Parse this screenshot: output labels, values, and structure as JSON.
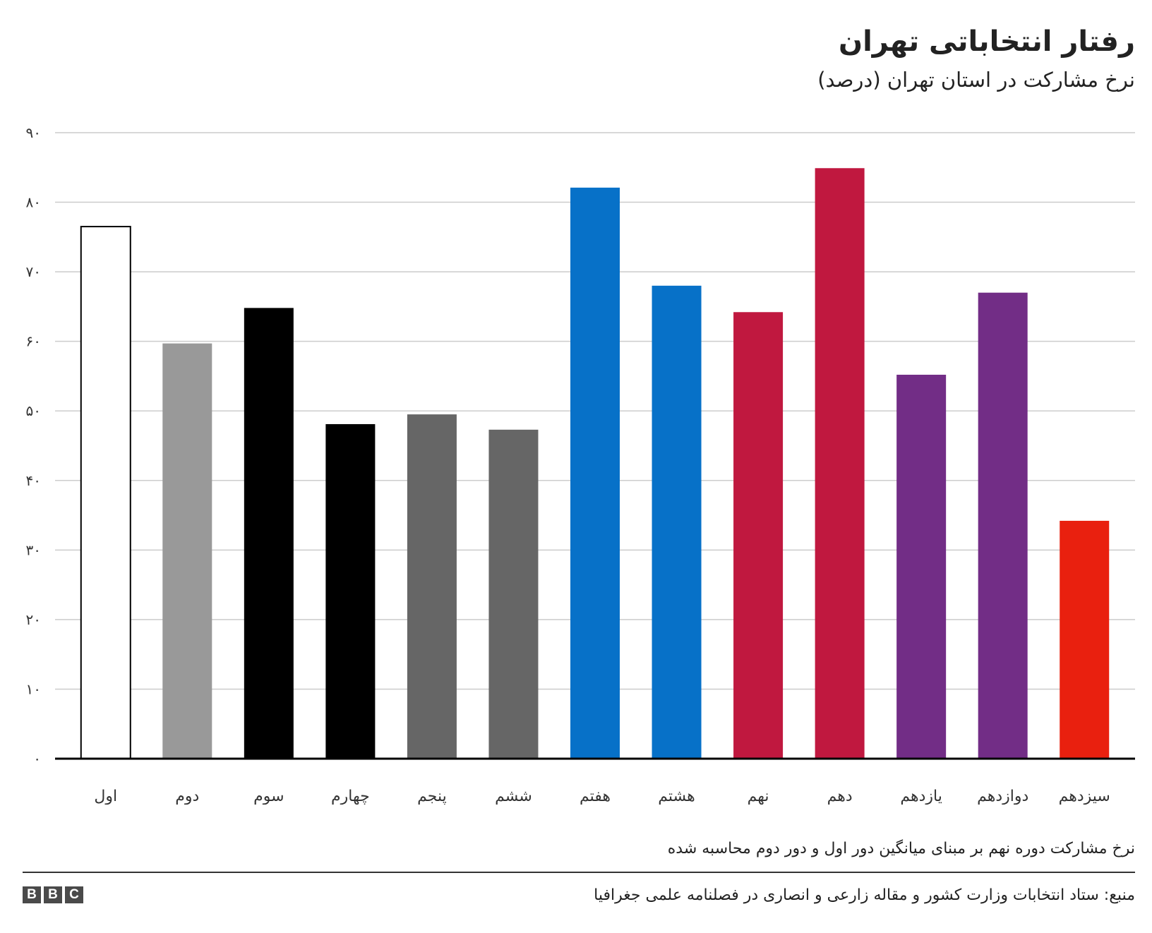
{
  "title": "رفتار انتخاباتی تهران",
  "subtitle": "نرخ مشارکت در استان تهران (درصد)",
  "note": "نرخ مشارکت دوره نهم بر مبنای میانگین دور اول و دور دوم محاسبه شده",
  "source": "منبع: ستاد انتخابات وزارت کشور و مقاله زارعی و انصاری در فصلنامه علمی جغرافیا",
  "logo": [
    "B",
    "B",
    "C"
  ],
  "chart_data": {
    "type": "bar",
    "categories": [
      "اول",
      "دوم",
      "سوم",
      "چهارم",
      "پنجم",
      "ششم",
      "هفتم",
      "هشتم",
      "نهم",
      "دهم",
      "یازدهم",
      "دوازدهم",
      "سیزدهم"
    ],
    "values": [
      76.5,
      59.7,
      64.8,
      48.1,
      49.5,
      47.3,
      82.1,
      68.0,
      64.2,
      84.9,
      55.2,
      67.0,
      34.2
    ],
    "colors": [
      "#ffffff",
      "#999999",
      "#000000",
      "#000000",
      "#666666",
      "#666666",
      "#0771c8",
      "#0771c8",
      "#c0183f",
      "#c0183f",
      "#722d86",
      "#722d86",
      "#e9200f"
    ],
    "yticks": [
      0,
      10,
      20,
      30,
      40,
      50,
      60,
      70,
      80,
      90
    ],
    "ytick_labels": [
      "۰",
      "۱۰",
      "۲۰",
      "۳۰",
      "۴۰",
      "۵۰",
      "۶۰",
      "۷۰",
      "۸۰",
      "۹۰"
    ],
    "ylim": [
      0,
      90
    ],
    "grid": true,
    "xlabel": "",
    "ylabel": ""
  }
}
